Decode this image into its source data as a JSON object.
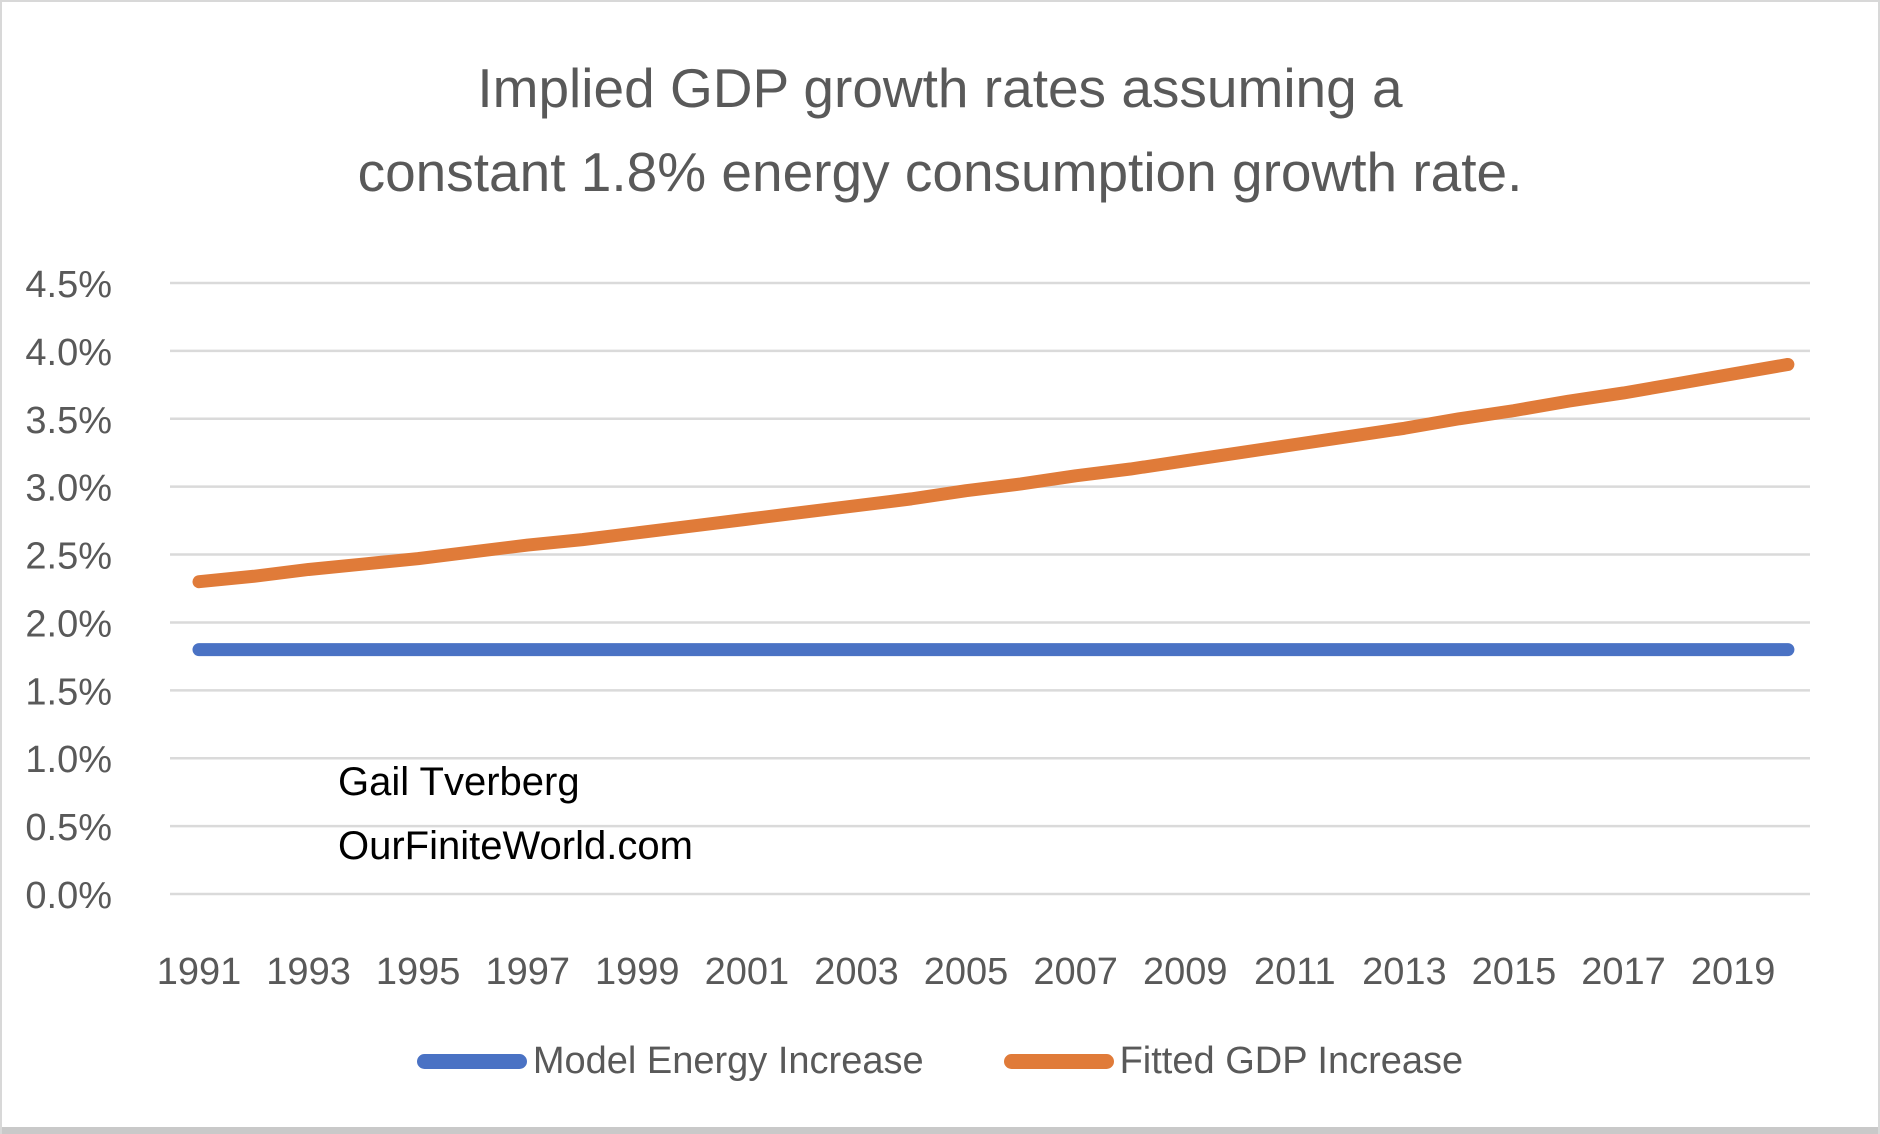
{
  "title": {
    "line1": "Implied GDP growth rates assuming a",
    "line2": "constant 1.8% energy consumption growth rate."
  },
  "annotation": {
    "line1": "Gail Tverberg",
    "line2": "OurFiniteWorld.com"
  },
  "colors": {
    "series_blue": "#4A72C4",
    "series_orange": "#E07B39",
    "gridline": "#DADADA",
    "axis_text": "#595959",
    "title_text": "#595959",
    "annotation_text": "#000000",
    "frame_border": "#D8D8D8",
    "bottom_bar": "#C9C9C9",
    "background": "#FFFFFF"
  },
  "chart_data": {
    "type": "line",
    "title": "Implied GDP growth rates assuming a constant 1.8% energy consumption growth rate.",
    "xlabel": "",
    "ylabel": "",
    "grid": true,
    "legend_position": "bottom",
    "ylim": [
      0.0,
      4.5
    ],
    "y_tick_values": [
      0.0,
      0.5,
      1.0,
      1.5,
      2.0,
      2.5,
      3.0,
      3.5,
      4.0,
      4.5
    ],
    "y_tick_labels": [
      "0.0%",
      "0.5%",
      "1.0%",
      "1.5%",
      "2.0%",
      "2.5%",
      "3.0%",
      "3.5%",
      "4.0%",
      "4.5%"
    ],
    "x": [
      1991,
      1992,
      1993,
      1994,
      1995,
      1996,
      1997,
      1998,
      1999,
      2000,
      2001,
      2002,
      2003,
      2004,
      2005,
      2006,
      2007,
      2008,
      2009,
      2010,
      2011,
      2012,
      2013,
      2014,
      2015,
      2016,
      2017,
      2018,
      2019,
      2020
    ],
    "x_tick_labels": [
      "1991",
      "1993",
      "1995",
      "1997",
      "1999",
      "2001",
      "2003",
      "2005",
      "2007",
      "2009",
      "2011",
      "2013",
      "2015",
      "2017",
      "2019"
    ],
    "series": [
      {
        "name": "Model Energy Increase",
        "color": "#4A72C4",
        "values": [
          1.8,
          1.8,
          1.8,
          1.8,
          1.8,
          1.8,
          1.8,
          1.8,
          1.8,
          1.8,
          1.8,
          1.8,
          1.8,
          1.8,
          1.8,
          1.8,
          1.8,
          1.8,
          1.8,
          1.8,
          1.8,
          1.8,
          1.8,
          1.8,
          1.8,
          1.8,
          1.8,
          1.8,
          1.8,
          1.8
        ]
      },
      {
        "name": "Fitted GDP Increase",
        "color": "#E07B39",
        "values": [
          2.3,
          2.34,
          2.39,
          2.43,
          2.47,
          2.52,
          2.57,
          2.61,
          2.66,
          2.71,
          2.76,
          2.81,
          2.86,
          2.91,
          2.97,
          3.02,
          3.08,
          3.13,
          3.19,
          3.25,
          3.31,
          3.37,
          3.43,
          3.5,
          3.56,
          3.63,
          3.69,
          3.76,
          3.83,
          3.9
        ]
      }
    ]
  }
}
